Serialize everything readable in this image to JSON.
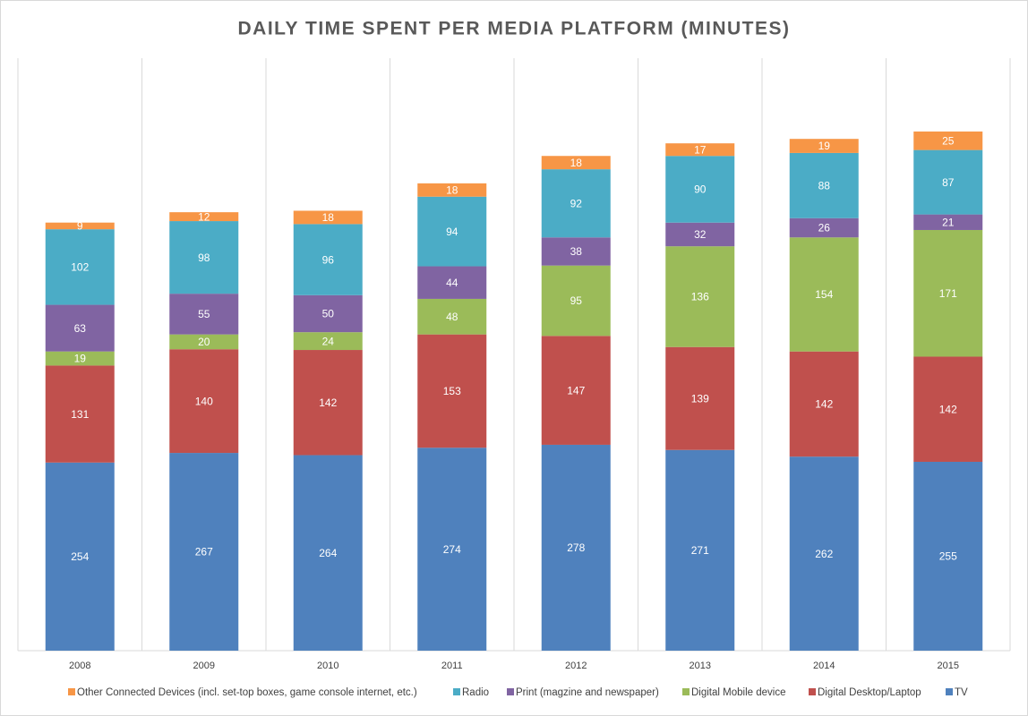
{
  "chart_data": {
    "type": "bar",
    "stacked": true,
    "title": "DAILY TIME SPENT PER MEDIA PLATFORM (MINUTES)",
    "categories": [
      "2008",
      "2009",
      "2010",
      "2011",
      "2012",
      "2013",
      "2014",
      "2015"
    ],
    "ylim": [
      0,
      800
    ],
    "series": [
      {
        "name": "Other Connected Devices (incl. set-top boxes, game console internet, etc.)",
        "color": "#f79646",
        "values": [
          9,
          12,
          18,
          18,
          18,
          17,
          19,
          25
        ]
      },
      {
        "name": "Radio",
        "color": "#4bacc6",
        "values": [
          102,
          98,
          96,
          94,
          92,
          90,
          88,
          87
        ]
      },
      {
        "name": "Print (magzine and newspaper)",
        "color": "#8064a2",
        "values": [
          63,
          55,
          50,
          44,
          38,
          32,
          26,
          21
        ]
      },
      {
        "name": "Digital Mobile device",
        "color": "#9bbb59",
        "values": [
          19,
          20,
          24,
          48,
          95,
          136,
          154,
          171
        ]
      },
      {
        "name": "Digital Desktop/Laptop",
        "color": "#c0504d",
        "values": [
          131,
          140,
          142,
          153,
          147,
          139,
          142,
          142
        ]
      },
      {
        "name": "TV",
        "color": "#4f81bd",
        "values": [
          254,
          267,
          264,
          274,
          278,
          271,
          262,
          255
        ]
      }
    ]
  }
}
